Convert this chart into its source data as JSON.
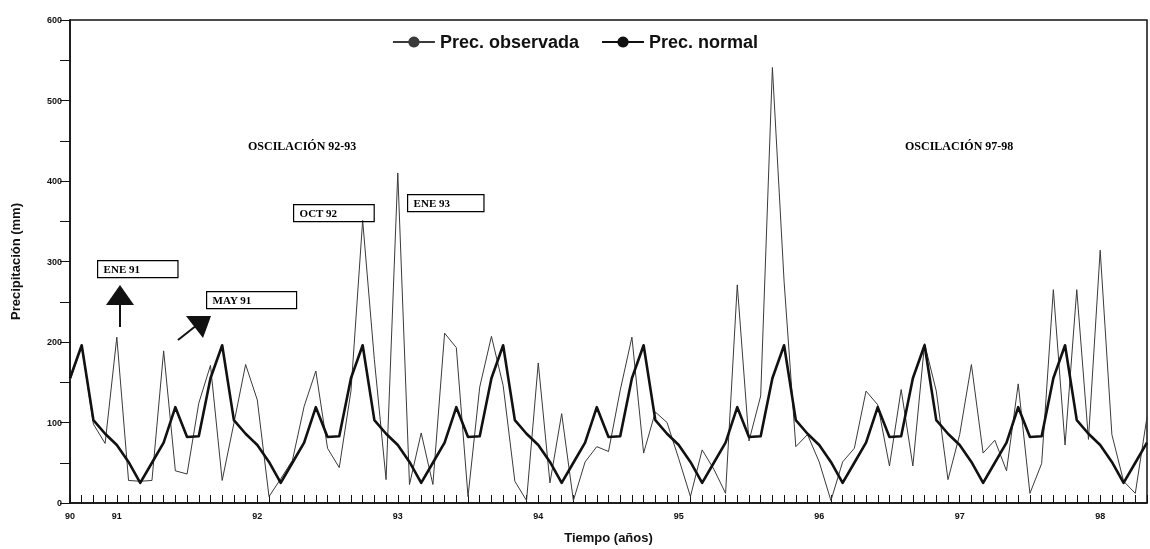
{
  "chart_data": {
    "type": "line",
    "xlabel": "Tiempo (años)",
    "ylabel": "Precipitación (mm)",
    "categories": [
      "90",
      null,
      null,
      null,
      "91",
      null,
      null,
      null,
      null,
      null,
      null,
      null,
      null,
      null,
      null,
      null,
      "92",
      null,
      null,
      null,
      null,
      null,
      null,
      null,
      null,
      null,
      null,
      null,
      "93",
      null,
      null,
      null,
      null,
      null,
      null,
      null,
      null,
      null,
      null,
      null,
      "94",
      null,
      null,
      null,
      null,
      null,
      null,
      null,
      null,
      null,
      null,
      null,
      "95",
      null,
      null,
      null,
      null,
      null,
      null,
      null,
      null,
      null,
      null,
      null,
      "96",
      null,
      null,
      null,
      null,
      null,
      null,
      null,
      null,
      null,
      null,
      null,
      "97",
      null,
      null,
      null,
      null,
      null,
      null,
      null,
      null,
      null,
      null,
      null,
      "98",
      null,
      null,
      null,
      null
    ],
    "series": [
      {
        "name": "Prec. observada",
        "color": "#3a3a3a",
        "line_style": "solid",
        "values": [
          152,
          195,
          98,
          74,
          206,
          28,
          27,
          28,
          189,
          40,
          36,
          124,
          171,
          28,
          99,
          172,
          128,
          8,
          30,
          53,
          120,
          164,
          68,
          44,
          139,
          351,
          178,
          29,
          410,
          23,
          87,
          23,
          211,
          193,
          8,
          144,
          207,
          146,
          27,
          3,
          174,
          25,
          111,
          3,
          51,
          70,
          64,
          140,
          206,
          62,
          113,
          100,
          55,
          8,
          66,
          42,
          12,
          271,
          77,
          133,
          541,
          275,
          70,
          85,
          51,
          3,
          51,
          68,
          139,
          122,
          46,
          141,
          46,
          198,
          139,
          29,
          85,
          172,
          62,
          78,
          40,
          148,
          12,
          49,
          265,
          72,
          265,
          79,
          314,
          85,
          27,
          12,
          107
        ]
      },
      {
        "name": "Prec. normal",
        "color": "#111111",
        "line_style": "solid",
        "values": [
          155,
          196,
          103,
          86,
          72,
          51,
          25,
          50,
          75,
          119,
          82,
          83,
          155,
          196,
          103,
          86,
          72,
          51,
          25,
          50,
          75,
          119,
          82,
          83,
          155,
          196,
          103,
          86,
          72,
          51,
          25,
          50,
          75,
          119,
          82,
          83,
          155,
          196,
          103,
          86,
          72,
          51,
          25,
          50,
          75,
          119,
          82,
          83,
          155,
          196,
          103,
          86,
          72,
          51,
          25,
          50,
          75,
          119,
          82,
          83,
          155,
          196,
          103,
          86,
          72,
          51,
          25,
          50,
          75,
          119,
          82,
          83,
          155,
          196,
          103,
          86,
          72,
          51,
          25,
          50,
          75,
          119,
          82,
          83,
          155,
          196,
          103,
          86,
          72,
          51,
          25,
          50,
          75
        ]
      }
    ],
    "ylim": [
      0,
      600
    ],
    "yticks": [
      0,
      {
        "value": 50,
        "label": null
      },
      100,
      {
        "value": 150,
        "label": null
      },
      200,
      {
        "value": 250,
        "label": null
      },
      300,
      {
        "value": 350,
        "label": null
      },
      400,
      {
        "value": 450,
        "label": null
      },
      500,
      {
        "value": 550,
        "label": null
      },
      600
    ],
    "annotations": [
      "OSCILACIÓN 92-93",
      "OSCILACIÓN 97-98",
      "ENE 91",
      "MAY 91",
      "OCT 92",
      "ENE 93"
    ],
    "legend": "top",
    "grid": false,
    "marker": "none"
  }
}
